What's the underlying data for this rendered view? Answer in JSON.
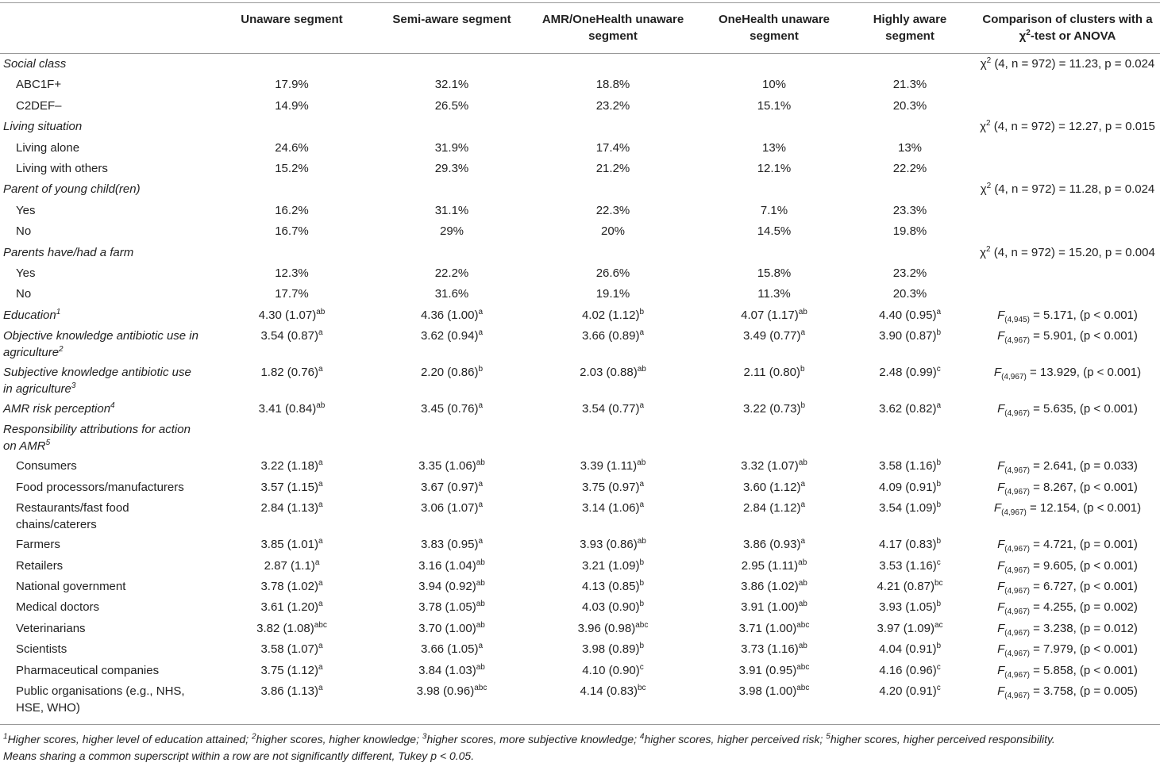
{
  "table": {
    "header": [
      "Unaware segment",
      "Semi-aware segment",
      "AMR/OneHealth unaware segment",
      "OneHealth unaware segment",
      "Highly aware segment",
      {
        "pre": "Comparison of clusters with a χ",
        "sup": "2",
        "post": "-test or ANOVA"
      }
    ],
    "rows": [
      {
        "group": "Social class",
        "stat": {
          "chi": "χ",
          "sup": "2",
          "rest": "(4, n = 972) = 11.23, p = 0.024"
        }
      },
      {
        "label": "ABC1F+",
        "cells": [
          "17.9%",
          "32.1%",
          "18.8%",
          "10%",
          "21.3%"
        ]
      },
      {
        "label": "C2DEF–",
        "cells": [
          "14.9%",
          "26.5%",
          "23.2%",
          "15.1%",
          "20.3%"
        ]
      },
      {
        "group": "Living situation",
        "stat": {
          "chi": "χ",
          "sup": "2",
          "rest": "(4, n = 972) = 12.27, p = 0.015"
        }
      },
      {
        "label": "Living alone",
        "cells": [
          "24.6%",
          "31.9%",
          "17.4%",
          "13%",
          "13%"
        ]
      },
      {
        "label": "Living with others",
        "cells": [
          "15.2%",
          "29.3%",
          "21.2%",
          "12.1%",
          "22.2%"
        ]
      },
      {
        "group": "Parent of young child(ren)",
        "stat": {
          "chi": "χ",
          "sup": "2",
          "rest": "(4, n = 972) = 11.28, p = 0.024"
        }
      },
      {
        "label": "Yes",
        "cells": [
          "16.2%",
          "31.1%",
          "22.3%",
          "7.1%",
          "23.3%"
        ]
      },
      {
        "label": "No",
        "cells": [
          "16.7%",
          "29%",
          "20%",
          "14.5%",
          "19.8%"
        ]
      },
      {
        "group": "Parents have/had a farm",
        "stat": {
          "chi": "χ",
          "sup": "2",
          "rest": "(4, n = 972) = 15.20, p = 0.004"
        }
      },
      {
        "label": "Yes",
        "cells": [
          "12.3%",
          "22.2%",
          "26.6%",
          "15.8%",
          "23.2%"
        ]
      },
      {
        "label": "No",
        "cells": [
          "17.7%",
          "31.6%",
          "19.1%",
          "11.3%",
          "20.3%"
        ]
      },
      {
        "group": "Education",
        "group_sup": "1",
        "cells": [
          {
            "v": "4.30 (1.07)",
            "sup": "ab"
          },
          {
            "v": "4.36 (1.00)",
            "sup": "a"
          },
          {
            "v": "4.02 (1.12)",
            "sup": "b"
          },
          {
            "v": "4.07 (1.17)",
            "sup": "ab"
          },
          {
            "v": "4.40 (0.95)",
            "sup": "a"
          }
        ],
        "stat": {
          "f": "F",
          "sub": "(4,945)",
          "rest": "= 5.171, (p < 0.001)"
        }
      },
      {
        "group": "Objective knowledge antibiotic use in agriculture",
        "group_sup": "2",
        "cells": [
          {
            "v": "3.54 (0.87)",
            "sup": "a"
          },
          {
            "v": "3.62 (0.94)",
            "sup": "a"
          },
          {
            "v": "3.66 (0.89)",
            "sup": "a"
          },
          {
            "v": "3.49 (0.77)",
            "sup": "a"
          },
          {
            "v": "3.90 (0.87)",
            "sup": "b"
          }
        ],
        "stat": {
          "f": "F",
          "sub": "(4,967)",
          "rest": "= 5.901, (p < 0.001)"
        }
      },
      {
        "group": "Subjective knowledge antibiotic use in agriculture",
        "group_sup": "3",
        "cells": [
          {
            "v": "1.82 (0.76)",
            "sup": "a"
          },
          {
            "v": "2.20 (0.86)",
            "sup": "b"
          },
          {
            "v": "2.03 (0.88)",
            "sup": "ab"
          },
          {
            "v": "2.11 (0.80)",
            "sup": "b"
          },
          {
            "v": "2.48 (0.99)",
            "sup": "c"
          }
        ],
        "stat": {
          "f": "F",
          "sub": "(4,967)",
          "rest": "= 13.929, (p < 0.001)"
        }
      },
      {
        "group": "AMR risk perception",
        "group_sup": "4",
        "cells": [
          {
            "v": "3.41 (0.84)",
            "sup": "ab"
          },
          {
            "v": "3.45 (0.76)",
            "sup": "a"
          },
          {
            "v": "3.54 (0.77)",
            "sup": "a"
          },
          {
            "v": "3.22 (0.73)",
            "sup": "b"
          },
          {
            "v": "3.62 (0.82)",
            "sup": "a"
          }
        ],
        "stat": {
          "f": "F",
          "sub": "(4,967)",
          "rest": "= 5.635, (p < 0.001)"
        }
      },
      {
        "group": "Responsibility attributions for action on AMR",
        "group_sup": "5"
      },
      {
        "label": "Consumers",
        "cells": [
          {
            "v": "3.22 (1.18)",
            "sup": "a"
          },
          {
            "v": "3.35 (1.06)",
            "sup": "ab"
          },
          {
            "v": "3.39 (1.11)",
            "sup": "ab"
          },
          {
            "v": "3.32 (1.07)",
            "sup": "ab"
          },
          {
            "v": "3.58 (1.16)",
            "sup": "b"
          }
        ],
        "stat": {
          "f": "F",
          "sub": "(4,967)",
          "rest": "= 2.641, (p = 0.033)"
        }
      },
      {
        "label": "Food processors/manufacturers",
        "cells": [
          {
            "v": "3.57 (1.15)",
            "sup": "a"
          },
          {
            "v": "3.67 (0.97)",
            "sup": "a"
          },
          {
            "v": "3.75 (0.97)",
            "sup": "a"
          },
          {
            "v": "3.60 (1.12)",
            "sup": "a"
          },
          {
            "v": "4.09 (0.91)",
            "sup": "b"
          }
        ],
        "stat": {
          "f": "F",
          "sub": "(4,967)",
          "rest": "= 8.267, (p < 0.001)"
        }
      },
      {
        "label": "Restaurants/fast food chains/caterers",
        "cells": [
          {
            "v": "2.84 (1.13)",
            "sup": "a"
          },
          {
            "v": "3.06 (1.07)",
            "sup": "a"
          },
          {
            "v": "3.14 (1.06)",
            "sup": "a"
          },
          {
            "v": "2.84 (1.12)",
            "sup": "a"
          },
          {
            "v": "3.54 (1.09)",
            "sup": "b"
          }
        ],
        "stat": {
          "f": "F",
          "sub": "(4,967)",
          "rest": "= 12.154, (p < 0.001)"
        }
      },
      {
        "label": "Farmers",
        "cells": [
          {
            "v": "3.85 (1.01)",
            "sup": "a"
          },
          {
            "v": "3.83 (0.95)",
            "sup": "a"
          },
          {
            "v": "3.93 (0.86)",
            "sup": "ab"
          },
          {
            "v": "3.86 (0.93)",
            "sup": "a"
          },
          {
            "v": "4.17 (0.83)",
            "sup": "b"
          }
        ],
        "stat": {
          "f": "F",
          "sub": "(4,967)",
          "rest": "= 4.721, (p = 0.001)"
        }
      },
      {
        "label": "Retailers",
        "cells": [
          {
            "v": "2.87 (1.1)",
            "sup": "a"
          },
          {
            "v": "3.16 (1.04)",
            "sup": "ab"
          },
          {
            "v": "3.21 (1.09)",
            "sup": "b"
          },
          {
            "v": "2.95 (1.11)",
            "sup": "ab"
          },
          {
            "v": "3.53 (1.16)",
            "sup": "c"
          }
        ],
        "stat": {
          "f": "F",
          "sub": "(4,967)",
          "rest": "= 9.605, (p < 0.001)"
        }
      },
      {
        "label": "National government",
        "cells": [
          {
            "v": "3.78 (1.02)",
            "sup": "a"
          },
          {
            "v": "3.94 (0.92)",
            "sup": "ab"
          },
          {
            "v": "4.13 (0.85)",
            "sup": "b"
          },
          {
            "v": "3.86 (1.02)",
            "sup": "ab"
          },
          {
            "v": "4.21 (0.87)",
            "sup": "bc"
          }
        ],
        "stat": {
          "f": "F",
          "sub": "(4,967)",
          "rest": "= 6.727, (p < 0.001)"
        }
      },
      {
        "label": "Medical doctors",
        "cells": [
          {
            "v": "3.61 (1.20)",
            "sup": "a"
          },
          {
            "v": "3.78 (1.05)",
            "sup": "ab"
          },
          {
            "v": "4.03 (0.90)",
            "sup": "b"
          },
          {
            "v": "3.91 (1.00)",
            "sup": "ab"
          },
          {
            "v": "3.93 (1.05)",
            "sup": "b"
          }
        ],
        "stat": {
          "f": "F",
          "sub": "(4,967)",
          "rest": "= 4.255, (p = 0.002)"
        }
      },
      {
        "label": "Veterinarians",
        "cells": [
          {
            "v": "3.82 (1.08)",
            "sup": "abc"
          },
          {
            "v": "3.70 (1.00)",
            "sup": "ab"
          },
          {
            "v": "3.96 (0.98)",
            "sup": "abc"
          },
          {
            "v": "3.71 (1.00)",
            "sup": "abc"
          },
          {
            "v": "3.97 (1.09)",
            "sup": "ac"
          }
        ],
        "stat": {
          "f": "F",
          "sub": "(4,967)",
          "rest": "= 3.238, (p = 0.012)"
        }
      },
      {
        "label": "Scientists",
        "cells": [
          {
            "v": "3.58 (1.07)",
            "sup": "a"
          },
          {
            "v": "3.66 (1.05)",
            "sup": "a"
          },
          {
            "v": "3.98 (0.89)",
            "sup": "b"
          },
          {
            "v": "3.73 (1.16)",
            "sup": "ab"
          },
          {
            "v": "4.04 (0.91)",
            "sup": "b"
          }
        ],
        "stat": {
          "f": "F",
          "sub": "(4,967)",
          "rest": "= 7.979, (p < 0.001)"
        }
      },
      {
        "label": "Pharmaceutical companies",
        "cells": [
          {
            "v": "3.75 (1.12)",
            "sup": "a"
          },
          {
            "v": "3.84 (1.03)",
            "sup": "ab"
          },
          {
            "v": "4.10 (0.90)",
            "sup": "c"
          },
          {
            "v": "3.91 (0.95)",
            "sup": "abc"
          },
          {
            "v": "4.16 (0.96)",
            "sup": "c"
          }
        ],
        "stat": {
          "f": "F",
          "sub": "(4,967)",
          "rest": "= 5.858, (p < 0.001)"
        }
      },
      {
        "label": "Public organisations (e.g., NHS, HSE, WHO)",
        "cells": [
          {
            "v": "3.86 (1.13)",
            "sup": "a"
          },
          {
            "v": "3.98 (0.96)",
            "sup": "abc"
          },
          {
            "v": "4.14 (0.83)",
            "sup": "bc"
          },
          {
            "v": "3.98 (1.00)",
            "sup": "abc"
          },
          {
            "v": "4.20 (0.91)",
            "sup": "c"
          }
        ],
        "stat": {
          "f": "F",
          "sub": "(4,967)",
          "rest": "= 3.758, (p = 0.005)"
        }
      }
    ],
    "footnotes": [
      [
        {
          "sup": "1",
          "text": "Higher scores, higher level of education attained;"
        },
        {
          "sup": "2",
          "text": "higher scores, higher knowledge;"
        },
        {
          "sup": "3",
          "text": "higher scores, more subjective knowledge;"
        },
        {
          "sup": "4",
          "text": "higher scores, higher perceived risk;"
        },
        {
          "sup": "5",
          "text": "higher scores, higher perceived responsibility."
        }
      ],
      "Means sharing a common superscript within a row are not significantly different, Tukey p < 0.05."
    ]
  }
}
